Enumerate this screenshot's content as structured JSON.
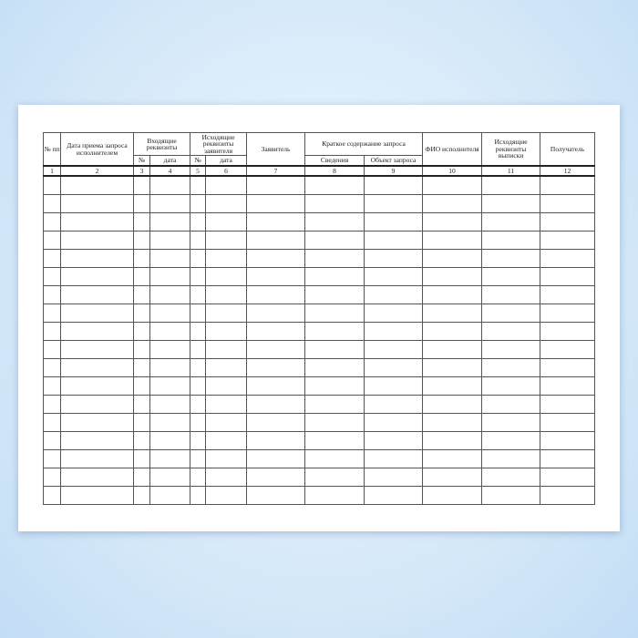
{
  "form": {
    "headers": {
      "num": "№ пп",
      "date_received": "Дата приема запроса исполнителем",
      "incoming": "Входящие реквизиты",
      "outgoing_applicant": "Исходящие реквизиты заявителя",
      "applicant": "Заявитель",
      "summary": "Краткое содержание запроса",
      "executor": "ФИО исполнителя",
      "outgoing_extract": "Исходящие реквизиты выписки",
      "recipient": "Получатель"
    },
    "subheaders": {
      "no_a": "№",
      "date_a": "дата",
      "no_b": "№",
      "date_b": "дата",
      "info": "Сведения",
      "object": "Объект запроса"
    },
    "column_numbers": [
      "1",
      "2",
      "3",
      "4",
      "5",
      "6",
      "7",
      "8",
      "9",
      "10",
      "11",
      "12"
    ],
    "empty_rows": 18
  }
}
